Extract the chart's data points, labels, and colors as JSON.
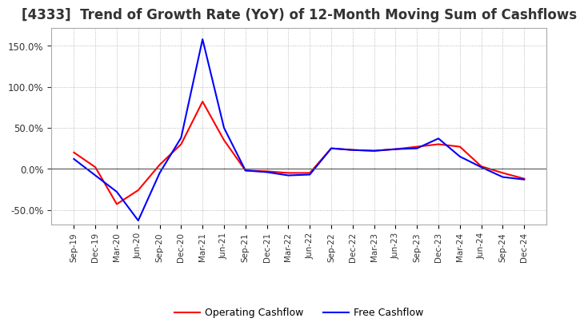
{
  "title": "[4333]  Trend of Growth Rate (YoY) of 12-Month Moving Sum of Cashflows",
  "title_fontsize": 12,
  "background_color": "#ffffff",
  "grid_color": "#aaaaaa",
  "x_labels": [
    "Sep-19",
    "Dec-19",
    "Mar-20",
    "Jun-20",
    "Sep-20",
    "Dec-20",
    "Mar-21",
    "Jun-21",
    "Sep-21",
    "Dec-21",
    "Mar-22",
    "Jun-22",
    "Sep-22",
    "Dec-22",
    "Mar-23",
    "Jun-23",
    "Sep-23",
    "Dec-23",
    "Mar-24",
    "Jun-24",
    "Sep-24",
    "Dec-24"
  ],
  "operating_cashflow": [
    0.2,
    0.02,
    -0.43,
    -0.26,
    0.05,
    0.3,
    0.82,
    0.35,
    -0.02,
    -0.03,
    -0.05,
    -0.05,
    0.25,
    0.23,
    0.22,
    0.24,
    0.27,
    0.3,
    0.27,
    0.03,
    -0.05,
    -0.12
  ],
  "free_cashflow": [
    0.12,
    -0.08,
    -0.28,
    -0.63,
    -0.05,
    0.38,
    1.58,
    0.5,
    -0.02,
    -0.04,
    -0.08,
    -0.07,
    0.25,
    0.23,
    0.22,
    0.24,
    0.25,
    0.37,
    0.15,
    0.02,
    -0.1,
    -0.13
  ],
  "operating_color": "#ff0000",
  "free_color": "#0000ff",
  "legend_labels": [
    "Operating Cashflow",
    "Free Cashflow"
  ],
  "yticks": [
    -0.5,
    0.0,
    0.5,
    1.0,
    1.5
  ],
  "ylim": [
    -0.68,
    1.72
  ]
}
